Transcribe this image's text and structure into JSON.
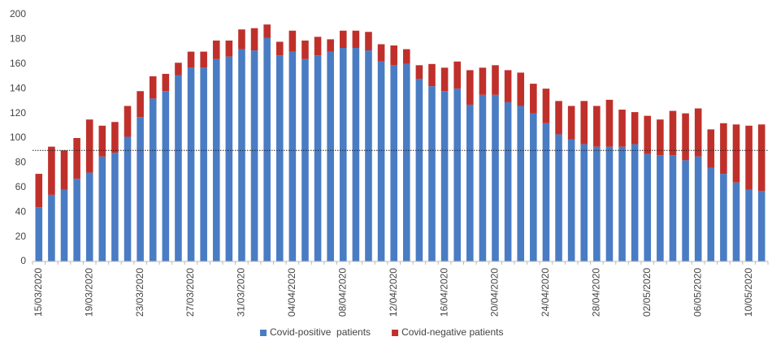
{
  "chart_data": {
    "type": "stacked-bar",
    "categories": [
      "15/03/2020",
      null,
      null,
      null,
      "19/03/2020",
      null,
      null,
      null,
      "23/03/2020",
      null,
      null,
      null,
      "27/03/2020",
      null,
      null,
      null,
      "31/03/2020",
      null,
      null,
      null,
      "04/04/2020",
      null,
      null,
      null,
      "08/04/2020",
      null,
      null,
      null,
      "12/04/2020",
      null,
      null,
      null,
      "16/04/2020",
      null,
      null,
      null,
      "20/04/2020",
      null,
      null,
      null,
      "24/04/2020",
      null,
      null,
      null,
      "28/04/2020",
      null,
      null,
      null,
      "02/05/2020",
      null,
      null,
      null,
      "06/05/2020",
      null,
      null,
      null,
      "10/05/2020",
      null
    ],
    "series": [
      {
        "name": "Covid-positive  patients",
        "color": "#4a7cc4",
        "values": [
          44,
          54,
          58,
          67,
          72,
          85,
          88,
          101,
          117,
          132,
          138,
          151,
          157,
          157,
          164,
          166,
          172,
          171,
          181,
          167,
          170,
          164,
          167,
          170,
          173,
          173,
          171,
          162,
          159,
          160,
          148,
          142,
          138,
          140,
          127,
          135,
          135,
          129,
          126,
          120,
          112,
          103,
          99,
          95,
          93,
          93,
          93,
          95,
          87,
          86,
          86,
          82,
          85,
          76,
          71,
          64,
          58,
          57
        ]
      },
      {
        "name": "Covid-negative patients",
        "color": "#c0302b",
        "values": [
          27,
          39,
          32,
          33,
          43,
          25,
          25,
          25,
          21,
          18,
          14,
          10,
          13,
          13,
          15,
          13,
          16,
          18,
          11,
          11,
          17,
          15,
          15,
          10,
          14,
          14,
          15,
          14,
          16,
          12,
          11,
          18,
          19,
          22,
          28,
          22,
          24,
          26,
          27,
          24,
          28,
          27,
          27,
          35,
          33,
          38,
          30,
          26,
          31,
          29,
          36,
          38,
          39,
          31,
          41,
          47,
          52,
          54
        ]
      }
    ],
    "ylim": [
      0,
      200
    ],
    "yticks": [
      0,
      20,
      40,
      60,
      80,
      100,
      120,
      140,
      160,
      180,
      200
    ],
    "reference_line": 90,
    "legend": "bottom"
  }
}
